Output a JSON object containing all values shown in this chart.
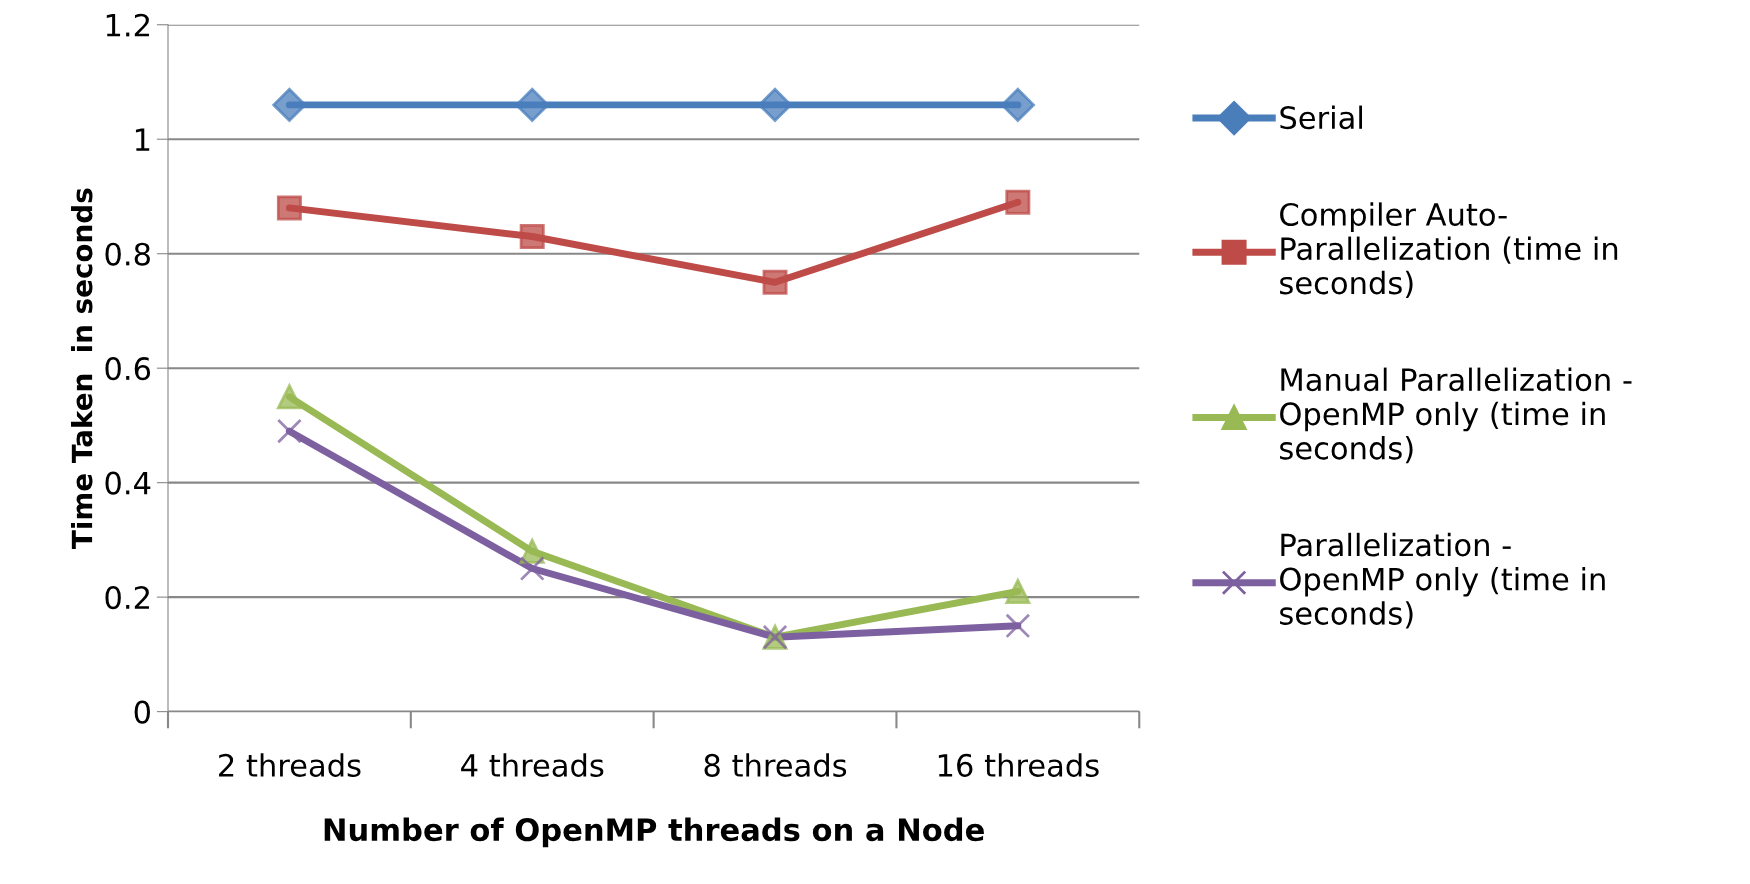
{
  "chart_data": {
    "type": "line",
    "xlabel": "Number of OpenMP threads on a Node",
    "ylabel": "Time Taken  in seconds",
    "categories": [
      "2 threads",
      "4 threads",
      "8 threads",
      "16 threads"
    ],
    "series": [
      {
        "name": "Serial",
        "color": "#4a7ebb",
        "marker": "diamond",
        "values": [
          1.06,
          1.06,
          1.06,
          1.06
        ]
      },
      {
        "name": "Compiler Auto-\nParallelization (time in\nseconds)",
        "color": "#be4b48",
        "marker": "square",
        "values": [
          0.88,
          0.83,
          0.75,
          0.89
        ]
      },
      {
        "name": "Manual Parallelization -\nOpenMP only (time in\nseconds)",
        "color": "#98b954",
        "marker": "triangle",
        "values": [
          0.55,
          0.28,
          0.13,
          0.21
        ]
      },
      {
        "name": "Parallelization -\nOpenMP only (time in\nseconds)",
        "color": "#7d60a0",
        "marker": "cross",
        "values": [
          0.49,
          0.25,
          0.13,
          0.15
        ]
      }
    ],
    "ylim": [
      0,
      1.2
    ],
    "yticks": [
      0,
      0.2,
      0.4,
      0.6,
      0.8,
      1,
      1.2
    ],
    "grid": "y",
    "legend": "right",
    "line_style": "solid"
  }
}
